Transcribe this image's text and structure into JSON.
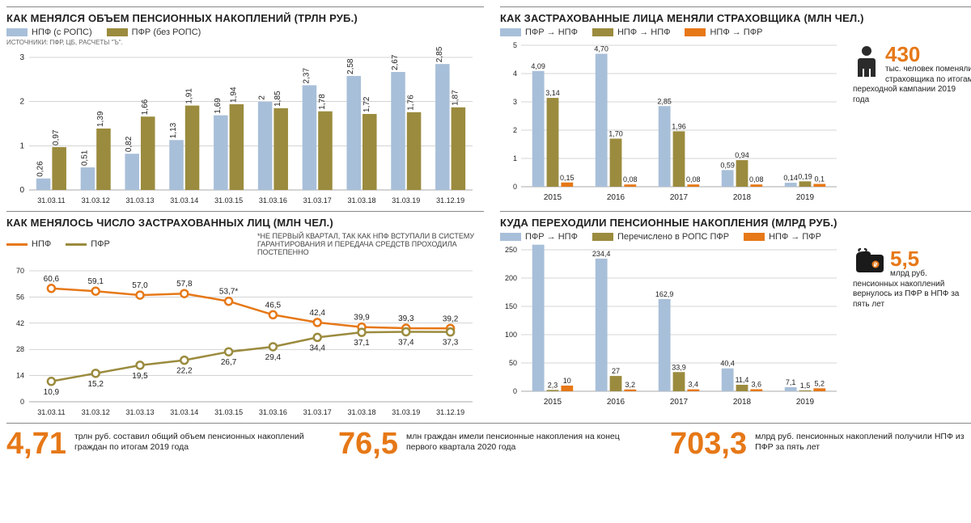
{
  "colors": {
    "blue": "#a8bfd9",
    "olive": "#9b8b3e",
    "orange": "#e67817",
    "grid": "#aaaaaa",
    "text": "#222222",
    "personFill": "#2b2b2b",
    "walletFill": "#1a1a1a"
  },
  "chart1": {
    "title": "КАК МЕНЯЛСЯ ОБЪЕМ ПЕНСИОННЫХ НАКОПЛЕНИЙ (ТРЛН РУБ.)",
    "legend": [
      "НПФ (с РОПС)",
      "ПФР (без РОПС)"
    ],
    "sources": "ИСТОЧНИКИ: ПФР, ЦБ, РАСЧЕТЫ \"Ъ\".",
    "xlabels": [
      "31.03.11",
      "31.03.12",
      "31.03.13",
      "31.03.14",
      "31.03.15",
      "31.03.16",
      "31.03.17",
      "31.03.18",
      "31.03.19",
      "31.12.19"
    ],
    "series1": [
      0.26,
      0.51,
      0.82,
      1.13,
      1.69,
      2.0,
      2.37,
      2.58,
      2.67,
      2.85
    ],
    "series2": [
      0.97,
      1.39,
      1.66,
      1.91,
      1.94,
      1.85,
      1.78,
      1.72,
      1.76,
      1.87
    ],
    "ymax": 3,
    "yticks": [
      0,
      1,
      2,
      3
    ]
  },
  "chart2": {
    "title": "КАК ЗАСТРАХОВАННЫЕ ЛИЦА МЕНЯЛИ СТРАХОВЩИКА (МЛН ЧЕЛ.)",
    "legend": [
      "ПФР → НПФ",
      "НПФ → НПФ",
      "НПФ → ПФР"
    ],
    "xlabels": [
      "2015",
      "2016",
      "2017",
      "2018",
      "2019"
    ],
    "s1": [
      4.09,
      4.7,
      2.85,
      0.59,
      0.14
    ],
    "s2": [
      3.14,
      1.7,
      1.96,
      0.94,
      0.19
    ],
    "s3": [
      0.15,
      0.08,
      0.08,
      0.08,
      0.1
    ],
    "s1l": [
      "4,09",
      "4,70",
      "2,85",
      "0,59",
      "0,14"
    ],
    "s2l": [
      "3,14",
      "1,70",
      "1,96",
      "0,94",
      "0,19"
    ],
    "s3l": [
      "0,15",
      "0,08",
      "0,08",
      "0,08",
      "0,1"
    ],
    "ymax": 5,
    "yticks": [
      0,
      1,
      2,
      3,
      4,
      5
    ],
    "callout_num": "430",
    "callout_txt": "тыс. человек поменяли страховщика по итогам переходной кампании 2019 года"
  },
  "chart3": {
    "title": "КАК МЕНЯЛОСЬ ЧИСЛО ЗАСТРАХОВАННЫХ ЛИЦ (МЛН ЧЕЛ.)",
    "legend": [
      "НПФ",
      "ПФР"
    ],
    "note": "*НЕ ПЕРВЫЙ КВАРТАЛ, ТАК КАК НПФ ВСТУПАЛИ В СИСТЕМУ ГАРАНТИРОВАНИЯ И ПЕРЕДАЧА СРЕДСТВ ПРОХОДИЛА ПОСТЕПЕННО",
    "xlabels": [
      "31.03.11",
      "31.03.12",
      "31.03.13",
      "31.03.14",
      "31.03.15",
      "31.03.16",
      "31.03.17",
      "31.03.18",
      "31.03.19",
      "31.12.19"
    ],
    "s1": [
      60.6,
      59.1,
      57.0,
      57.8,
      53.7,
      46.5,
      42.4,
      39.9,
      39.3,
      39.2
    ],
    "s2": [
      10.9,
      15.2,
      19.5,
      22.2,
      26.7,
      29.4,
      34.4,
      37.1,
      37.4,
      37.3
    ],
    "s1l": [
      "60,6",
      "59,1",
      "57,0",
      "57,8",
      "53,7*",
      "46,5",
      "42,4",
      "39,9",
      "39,3",
      "39,2"
    ],
    "s2l": [
      "10,9",
      "15,2",
      "19,5",
      "22,2",
      "26,7",
      "29,4",
      "34,4",
      "37,1",
      "37,4",
      "37,3"
    ],
    "ymax": 70,
    "yticks": [
      0,
      14,
      28,
      42,
      56,
      70
    ]
  },
  "chart4": {
    "title": "КУДА ПЕРЕХОДИЛИ ПЕНСИОННЫЕ НАКОПЛЕНИЯ (МЛРД РУБ.)",
    "legend": [
      "ПФР → НПФ",
      "Перечислено в РОПС ПФР",
      "НПФ → ПФР"
    ],
    "xlabels": [
      "2015",
      "2016",
      "2017",
      "2018",
      "2019"
    ],
    "s1": [
      259,
      234.4,
      162.9,
      40.4,
      7.1
    ],
    "s2": [
      2.3,
      27,
      33.9,
      11.4,
      1.5
    ],
    "s3": [
      10,
      3.2,
      3.4,
      3.6,
      5.2
    ],
    "s1l": [
      "259",
      "234,4",
      "162,9",
      "40,4",
      "7,1"
    ],
    "s2l": [
      "2,3",
      "27",
      "33,9",
      "11,4",
      "1,5"
    ],
    "s3l": [
      "10",
      "3,2",
      "3,4",
      "3,6",
      "5,2"
    ],
    "ymax": 250,
    "yticks": [
      0,
      50,
      100,
      150,
      200,
      250
    ],
    "callout_num": "5,5",
    "callout_txt": "млрд руб. пенсионных накоплений вернулось из ПФР в НПФ за пять лет"
  },
  "footer": [
    {
      "num": "4,71",
      "txt": "трлн руб. составил общий объем пенсионных накоплений граждан по итогам 2019 года"
    },
    {
      "num": "76,5",
      "txt": "млн граждан имели пенсионные накопления на конец первого квартала 2020 года"
    },
    {
      "num": "703,3",
      "txt": "млрд руб. пенсионных накоплений получили НПФ из ПФР за пять лет"
    }
  ]
}
